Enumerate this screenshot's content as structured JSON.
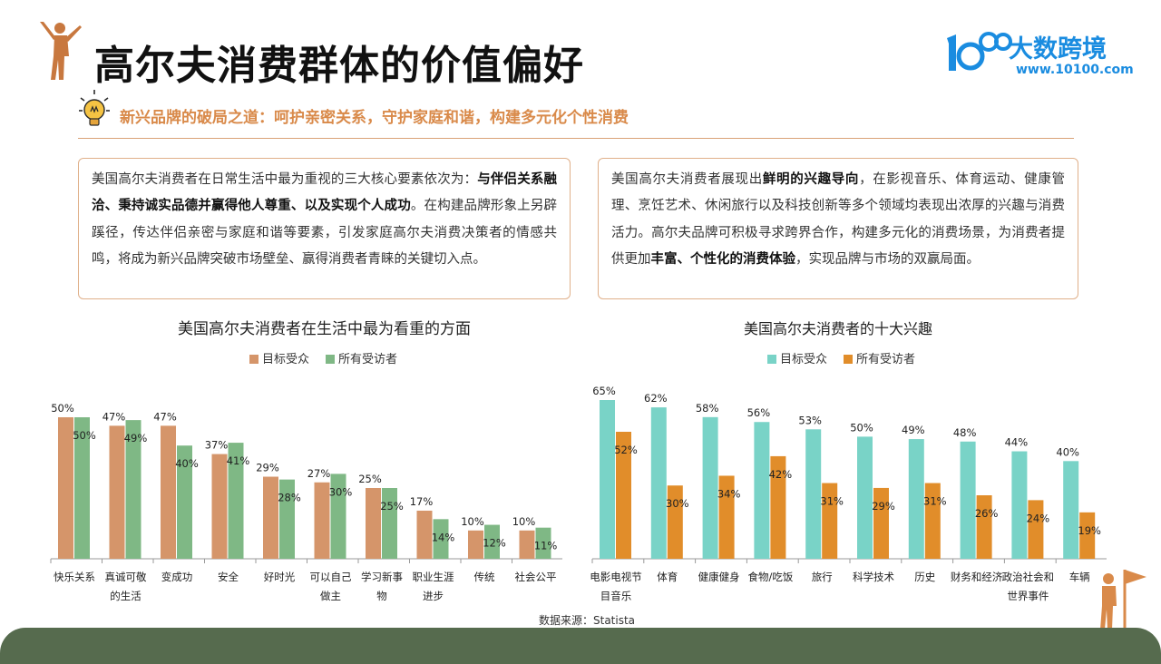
{
  "header": {
    "title": "高尔夫消费群体的价值偏好",
    "subtitle": "新兴品牌的破局之道：呵护亲密关系，守护家庭和谐，构建多元化个性消费",
    "logo_text": "大数跨境",
    "logo_url": "www.10100.com"
  },
  "boxes": {
    "left": {
      "p1": "美国高尔夫消费者在日常生活中最为重视的三大核心要素依次为：",
      "b1": "与伴侣关系融洽、秉持诚实品德并赢得他人尊重、以及实现个人成功",
      "p2": "。在构建品牌形象上另辟蹊径，传达伴侣亲密与家庭和谐等要素，引发家庭高尔夫消费决策者的情感共鸣，将成为新兴品牌突破市场壁垒、赢得消费者青睐的关键切入点。"
    },
    "right": {
      "p1": "美国高尔夫消费者展现出",
      "b1": "鲜明的兴趣导向",
      "p2": "，在影视音乐、体育运动、健康管理、烹饪艺术、休闲旅行以及科技创新等多个领域均表现出浓厚的兴趣与消费活力。高尔夫品牌可积极寻求跨界合作，构建多元化的消费场景，为消费者提供更加",
      "b2": "丰富、个性化的消费体验",
      "p3": "，实现品牌与市场的双赢局面。"
    }
  },
  "source": "数据来源：Statista",
  "chart_data": [
    {
      "type": "bar",
      "title": "美国高尔夫消费者在生活中最为看重的方面",
      "categories": [
        "快乐关系",
        "真诚可敬的生活",
        "变成功",
        "安全",
        "好时光",
        "可以自己做主",
        "学习新事物",
        "职业生涯进步",
        "传统",
        "社会公平"
      ],
      "category_lines": [
        [
          "快乐关系"
        ],
        [
          "真诚可敬",
          "的生活"
        ],
        [
          "变成功"
        ],
        [
          "安全"
        ],
        [
          "好时光"
        ],
        [
          "可以自己",
          "做主"
        ],
        [
          "学习新事",
          "物"
        ],
        [
          "职业生涯",
          "进步"
        ],
        [
          "传统"
        ],
        [
          "社会公平"
        ]
      ],
      "series": [
        {
          "name": "目标受众",
          "color": "#d5956a",
          "values": [
            50,
            47,
            47,
            37,
            29,
            27,
            25,
            17,
            10,
            10
          ]
        },
        {
          "name": "所有受访者",
          "color": "#7fb885",
          "values": [
            50,
            49,
            40,
            41,
            28,
            30,
            25,
            14,
            12,
            11
          ]
        }
      ],
      "value_suffix": "%",
      "ylim": [
        0,
        50
      ],
      "legend": "top-center",
      "grid": false
    },
    {
      "type": "bar",
      "title": "美国高尔夫消费者的十大兴趣",
      "categories": [
        "电影电视节目音乐",
        "体育",
        "健康健身",
        "食物/吃饭",
        "旅行",
        "科学技术",
        "历史",
        "财务和经济",
        "政治社会和世界事件",
        "车辆"
      ],
      "category_lines": [
        [
          "电影电视节",
          "目音乐"
        ],
        [
          "体育"
        ],
        [
          "健康健身"
        ],
        [
          "食物/吃饭"
        ],
        [
          "旅行"
        ],
        [
          "科学技术"
        ],
        [
          "历史"
        ],
        [
          "财务和经济"
        ],
        [
          "政治社会和",
          "世界事件"
        ],
        [
          "车辆"
        ]
      ],
      "series": [
        {
          "name": "目标受众",
          "color": "#79d3c7",
          "values": [
            65,
            62,
            58,
            56,
            53,
            50,
            49,
            48,
            44,
            40
          ]
        },
        {
          "name": "所有受访者",
          "color": "#e18d2a",
          "values": [
            52,
            30,
            34,
            42,
            31,
            29,
            31,
            26,
            24,
            19
          ]
        }
      ],
      "value_suffix": "%",
      "ylim": [
        0,
        65
      ],
      "legend": "top-center",
      "grid": false
    }
  ]
}
